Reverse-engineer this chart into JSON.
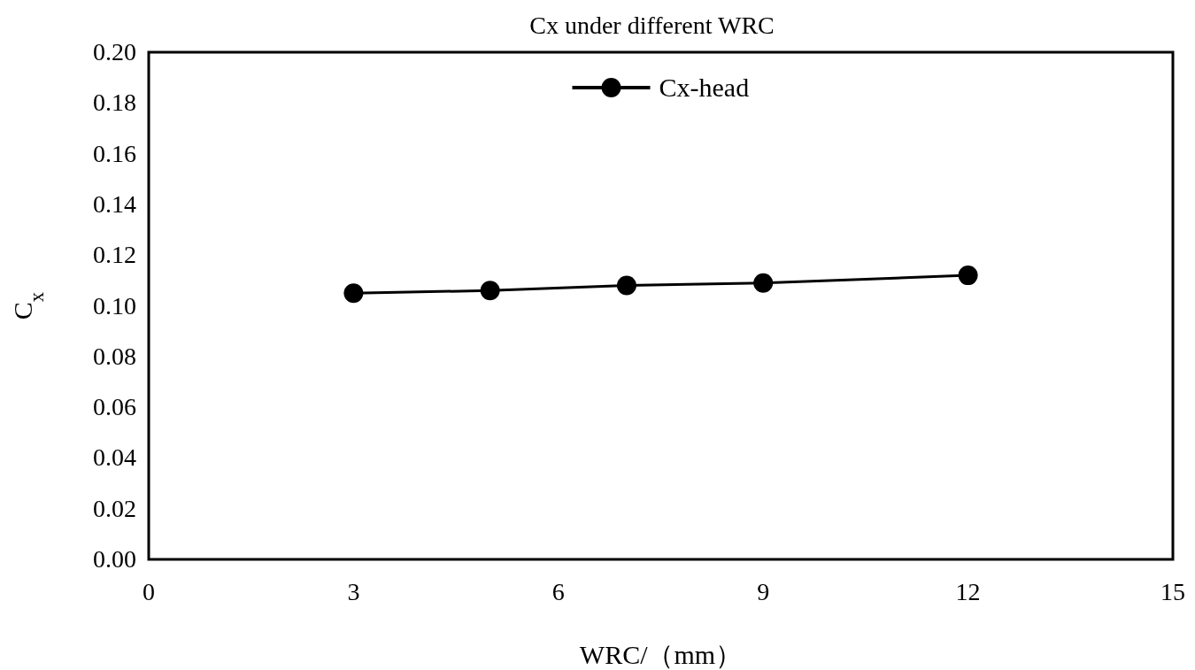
{
  "chart_data": {
    "type": "line",
    "title": "Cx under different WRC",
    "xlabel": "WRC/（mm）",
    "ylabel": "C$_{x}$",
    "x": [
      3,
      5,
      7,
      9,
      12
    ],
    "series": [
      {
        "name": "Cx-head",
        "color": "#000000",
        "values": [
          0.105,
          0.106,
          0.108,
          0.109,
          0.112
        ]
      }
    ],
    "xlim": [
      0,
      15
    ],
    "xticks": [
      0,
      3,
      6,
      9,
      12,
      15
    ],
    "ylim": [
      0,
      0.2
    ],
    "yticks": [
      {
        "value": 0,
        "label": "0.00"
      },
      {
        "value": 0.02,
        "label": "0.02"
      },
      {
        "value": 0.04,
        "label": "0.04"
      },
      {
        "value": 0.06,
        "label": "0.06"
      },
      {
        "value": 0.08,
        "label": "0.08"
      },
      {
        "value": 0.1,
        "label": "0.10"
      },
      {
        "value": 0.12,
        "label": "0.12"
      },
      {
        "value": 0.14,
        "label": "0.14"
      },
      {
        "value": 0.16,
        "label": "0.16"
      },
      {
        "value": 0.18,
        "label": "0.18"
      },
      {
        "value": 0.2,
        "label": "0.20"
      }
    ],
    "grid": false,
    "legend": "top",
    "marker": "circle",
    "line_style": "solid"
  }
}
